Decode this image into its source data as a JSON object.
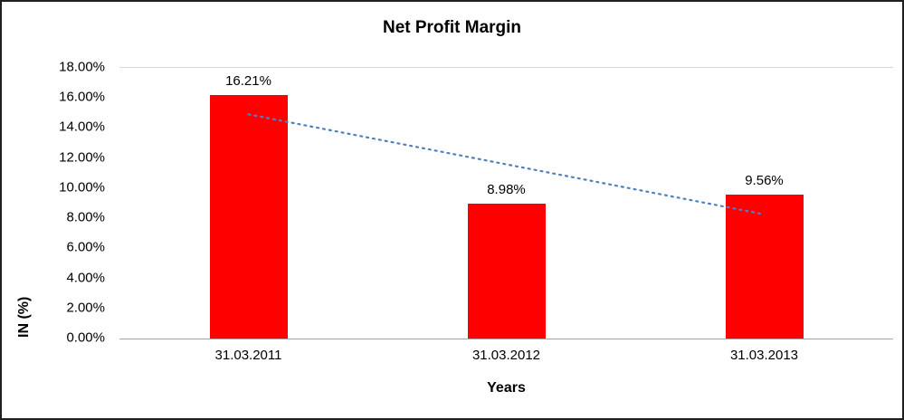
{
  "chart_data": {
    "type": "bar",
    "title": "Net Profit Margin",
    "xlabel": "Years",
    "ylabel": "IN (%)",
    "categories": [
      "31.03.2011",
      "31.03.2012",
      "31.03.2013"
    ],
    "values": [
      16.21,
      8.98,
      9.56
    ],
    "value_labels": [
      "16.21%",
      "8.98%",
      "9.56%"
    ],
    "ylim": [
      0,
      18
    ],
    "ytick_step": 2,
    "yticks": [
      "18.00%",
      "16.00%",
      "14.00%",
      "12.00%",
      "10.00%",
      "8.00%",
      "6.00%",
      "4.00%",
      "2.00%",
      "0.00%"
    ],
    "bar_color": "#FF0000",
    "legend": "none",
    "grid": "top-boundary-line-only",
    "trendline": {
      "type": "linear",
      "style": "dotted",
      "color": "#4F81BD",
      "start_value": 14.91,
      "end_value": 8.26
    }
  }
}
